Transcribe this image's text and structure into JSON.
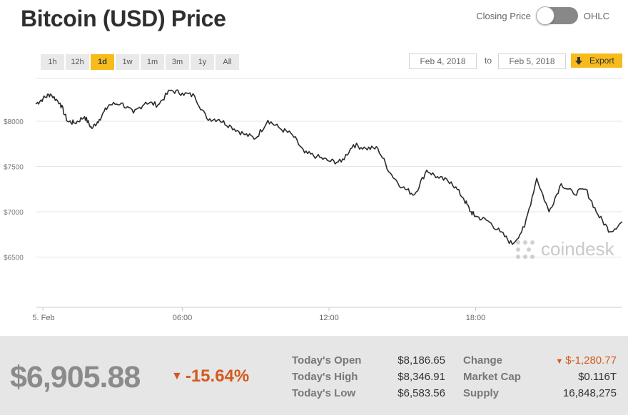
{
  "header": {
    "title": "Bitcoin (USD) Price",
    "toggle_left_label": "Closing Price",
    "toggle_right_label": "OHLC"
  },
  "ranges": [
    "1h",
    "12h",
    "1d",
    "1w",
    "1m",
    "3m",
    "1y",
    "All"
  ],
  "active_range": "1d",
  "date_range": {
    "from": "Feb 4, 2018",
    "to_label": "to",
    "to": "Feb 5, 2018"
  },
  "export_label": "Export",
  "watermark": "coindesk",
  "chart_data": {
    "type": "line",
    "title": "Bitcoin (USD) Price",
    "xlabel": "",
    "ylabel": "",
    "x_ticks": [
      "5. Feb",
      "06:00",
      "12:00",
      "18:00"
    ],
    "y_ticks": [
      "$6500",
      "$7000",
      "$7500",
      "$8000"
    ],
    "ylim": [
      6000,
      8500
    ],
    "x_hours": [
      0,
      0.3,
      0.6,
      1,
      1.3,
      1.6,
      2,
      2.3,
      2.6,
      3,
      3.5,
      4,
      4.5,
      5,
      5.5,
      6,
      6.5,
      7,
      7.5,
      8,
      8.5,
      9,
      9.5,
      10,
      10.5,
      11,
      11.5,
      12,
      12.5,
      13,
      13.5,
      14,
      14.5,
      15,
      15.5,
      16,
      16.5,
      17,
      17.5,
      17.8,
      18,
      18.5,
      19,
      19.5,
      20,
      20.5,
      21,
      21.5,
      22,
      22.5,
      23,
      23.5,
      24
    ],
    "series": [
      {
        "name": "Closing Price",
        "values": [
          8190,
          8250,
          8300,
          8200,
          8000,
          7980,
          8050,
          7920,
          8020,
          8180,
          8200,
          8090,
          8210,
          8180,
          8340,
          8310,
          8280,
          8030,
          8020,
          7940,
          7860,
          7810,
          8010,
          7920,
          7850,
          7650,
          7610,
          7560,
          7550,
          7740,
          7700,
          7700,
          7430,
          7270,
          7190,
          7460,
          7370,
          7330,
          7150,
          7000,
          6950,
          6900,
          6780,
          6640,
          6830,
          7370,
          7000,
          7310,
          7200,
          7250,
          6970,
          6780,
          6890
        ]
      }
    ]
  },
  "summary": {
    "current_price": "$6,905.88",
    "change_percent": "-15.64%",
    "open_label": "Today's Open",
    "open_value": "$8,186.65",
    "high_label": "Today's High",
    "high_value": "$8,346.91",
    "low_label": "Today's Low",
    "low_value": "$6,583.56",
    "change_label": "Change",
    "change_value": "$-1,280.77",
    "mcap_label": "Market Cap",
    "mcap_value": "$0.116T",
    "supply_label": "Supply",
    "supply_value": "16,848,275"
  },
  "colors": {
    "accent": "#f7bc1c",
    "negative": "#d25a1d",
    "line": "#2a2a2a"
  }
}
